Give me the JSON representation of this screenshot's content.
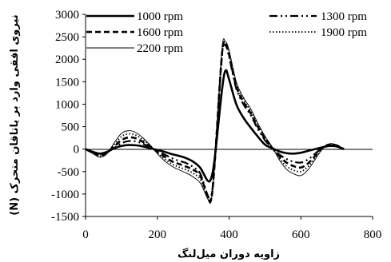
{
  "chart_data": {
    "type": "line",
    "title": "",
    "xlabel": "زاویه دوران میل‌لنگ",
    "ylabel": "نیروی افقی وارد بر یاتاقان متحرک (N)",
    "xlim": [
      0,
      800
    ],
    "ylim": [
      -1500,
      3000
    ],
    "xticks": [
      0,
      200,
      400,
      600,
      800
    ],
    "yticks": [
      -1500,
      -1000,
      -500,
      0,
      500,
      1000,
      1500,
      2000,
      2500,
      3000
    ],
    "grid": false,
    "legend_position": "top",
    "x": [
      0,
      20,
      40,
      60,
      80,
      100,
      120,
      140,
      160,
      180,
      200,
      220,
      240,
      260,
      280,
      300,
      320,
      340,
      350,
      360,
      380,
      390,
      400,
      420,
      440,
      460,
      480,
      500,
      520,
      540,
      560,
      580,
      600,
      620,
      640,
      660,
      680,
      700,
      720
    ],
    "series": [
      {
        "name": "1000 rpm",
        "style": "solid-thick",
        "values": [
          0,
          -60,
          -100,
          -60,
          20,
          70,
          90,
          85,
          60,
          20,
          -20,
          -60,
          -110,
          -150,
          -200,
          -280,
          -420,
          -700,
          -650,
          -200,
          1300,
          1750,
          1550,
          1000,
          700,
          480,
          280,
          100,
          20,
          -50,
          -90,
          -100,
          -80,
          -40,
          0,
          40,
          70,
          60,
          0
        ]
      },
      {
        "name": "1300 rpm",
        "style": "long-dash-dot-dot",
        "values": [
          0,
          -70,
          -120,
          -70,
          30,
          130,
          180,
          170,
          120,
          40,
          -40,
          -120,
          -200,
          -260,
          -310,
          -400,
          -550,
          -1020,
          -1080,
          -300,
          2050,
          2300,
          2050,
          1350,
          1000,
          760,
          450,
          200,
          20,
          -120,
          -220,
          -280,
          -300,
          -230,
          -100,
          40,
          90,
          70,
          0
        ]
      },
      {
        "name": "1600 rpm",
        "style": "dashed-thick",
        "values": [
          0,
          -80,
          -140,
          -80,
          60,
          200,
          260,
          240,
          160,
          60,
          -60,
          -170,
          -270,
          -330,
          -390,
          -460,
          -600,
          -1050,
          -1120,
          -300,
          2100,
          2350,
          2100,
          1400,
          1050,
          800,
          500,
          230,
          30,
          -160,
          -300,
          -380,
          -410,
          -320,
          -150,
          30,
          100,
          80,
          0
        ]
      },
      {
        "name": "1900 rpm",
        "style": "dotted",
        "values": [
          0,
          -90,
          -160,
          -90,
          100,
          280,
          340,
          310,
          210,
          80,
          -80,
          -220,
          -330,
          -400,
          -460,
          -540,
          -680,
          -1080,
          -1130,
          -300,
          2150,
          2350,
          2150,
          1450,
          1100,
          850,
          540,
          260,
          40,
          -200,
          -380,
          -470,
          -500,
          -390,
          -190,
          20,
          110,
          85,
          0
        ]
      },
      {
        "name": "2200 rpm",
        "style": "solid-thin",
        "values": [
          0,
          -100,
          -180,
          -100,
          140,
          350,
          410,
          370,
          250,
          90,
          -100,
          -260,
          -380,
          -460,
          -530,
          -620,
          -760,
          -1100,
          -1150,
          -310,
          2200,
          2380,
          2200,
          1500,
          1150,
          900,
          580,
          290,
          50,
          -240,
          -450,
          -550,
          -590,
          -460,
          -230,
          0,
          120,
          90,
          0
        ]
      }
    ]
  }
}
